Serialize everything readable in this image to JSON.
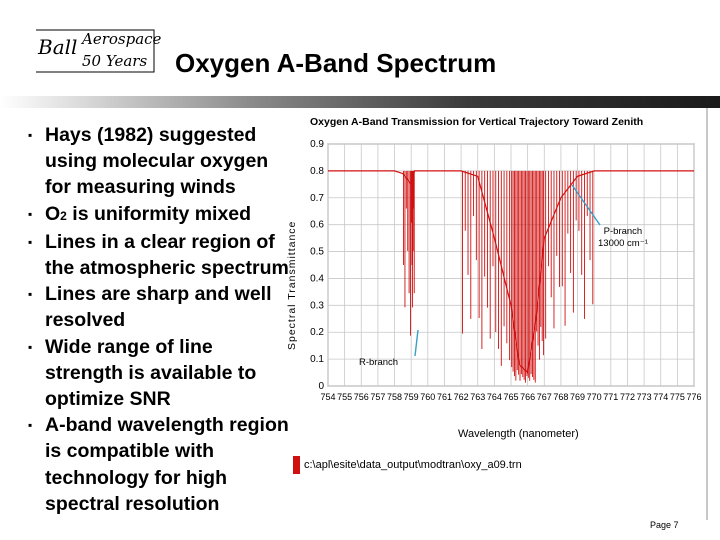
{
  "header": {
    "logo_text": "Ball Aerospace 50 Years",
    "title": "Oxygen A-Band Spectrum"
  },
  "bullets": [
    {
      "text": "Hays (1982) suggested using molecular oxygen for measuring winds"
    },
    {
      "pre": "O",
      "sub": "2",
      "post": " is uniformity mixed"
    },
    {
      "text": "Lines in a clear region of the atmospheric spectrum"
    },
    {
      "text": "Lines are sharp and well resolved"
    },
    {
      "text": "Wide range of line strength is available to optimize SNR"
    },
    {
      "text": "A-band wavelength region is compatible with technology for high spectral resolution"
    }
  ],
  "chart_data": {
    "type": "line",
    "title": "Oxygen A-Band Transmission for Vertical Trajectory Toward Zenith",
    "xlabel": "Wavelength (nanometer)",
    "ylabel": "Spectral Transmittance",
    "x_ticks": [
      "754",
      "755",
      "756",
      "757",
      "758",
      "759",
      "760",
      "761",
      "762",
      "763",
      "764",
      "765",
      "766",
      "767",
      "768",
      "769",
      "770",
      "771",
      "772",
      "773",
      "774",
      "775",
      "776"
    ],
    "y_ticks": [
      "0",
      "0.1",
      "0.2",
      "0.3",
      "0.4",
      "0.5",
      "0.6",
      "0.7",
      "0.8",
      "0.9"
    ],
    "xlim": [
      754,
      776
    ],
    "ylim": [
      0,
      0.9
    ],
    "grid": true,
    "series": [
      {
        "name": "c:\\apl\\esite\\data_output\\modtran\\oxy_a09.trn",
        "color": "#d01010",
        "x": [
          754,
          755,
          756,
          757,
          758,
          758.5,
          759,
          759.2,
          760,
          761,
          762,
          763,
          764,
          765,
          765.5,
          766,
          766.5,
          767,
          768,
          769,
          770,
          771,
          772,
          773,
          774,
          775,
          776
        ],
        "y": [
          0.8,
          0.8,
          0.8,
          0.8,
          0.8,
          0.79,
          0.75,
          0.8,
          0.8,
          0.8,
          0.8,
          0.78,
          0.55,
          0.3,
          0.08,
          0.05,
          0.25,
          0.55,
          0.7,
          0.78,
          0.8,
          0.8,
          0.8,
          0.8,
          0.8,
          0.8,
          0.8
        ]
      }
    ],
    "annotations": [
      {
        "text": "P-branch\n13000 cm⁻¹"
      },
      {
        "text": "R-branch"
      }
    ]
  },
  "footer": {
    "page": "Page 7"
  },
  "colors": {
    "trace": "#d01010",
    "text": "#000000"
  }
}
